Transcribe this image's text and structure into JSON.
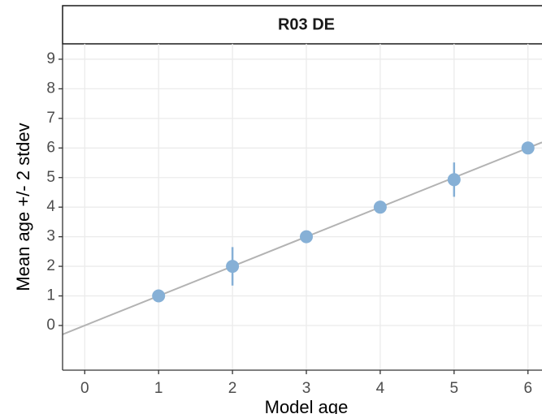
{
  "chart_data": {
    "type": "errorbar-scatter",
    "facet_title": "R03 DE",
    "x_label": "Model age",
    "y_label": "Mean age +/- 2 stdev",
    "series": [
      {
        "color": "#86b0d6",
        "x": [
          1,
          2,
          3,
          4,
          5,
          6
        ],
        "values": [
          1,
          2,
          3,
          4,
          4.93,
          6
        ],
        "errors": [
          0,
          0.65,
          0,
          0,
          0.58,
          0
        ]
      }
    ],
    "reference_line": {
      "slope": 1,
      "intercept": 0,
      "color": "#b3b3b3"
    },
    "xlim": [
      -0.3,
      6.19
    ],
    "ylim": [
      -1.51,
      9.52
    ],
    "xticks": [
      0,
      1,
      2,
      3,
      4,
      5,
      6
    ],
    "yticks": [
      0,
      1,
      2,
      3,
      4,
      5,
      6,
      7,
      8,
      9
    ],
    "grid": true
  }
}
